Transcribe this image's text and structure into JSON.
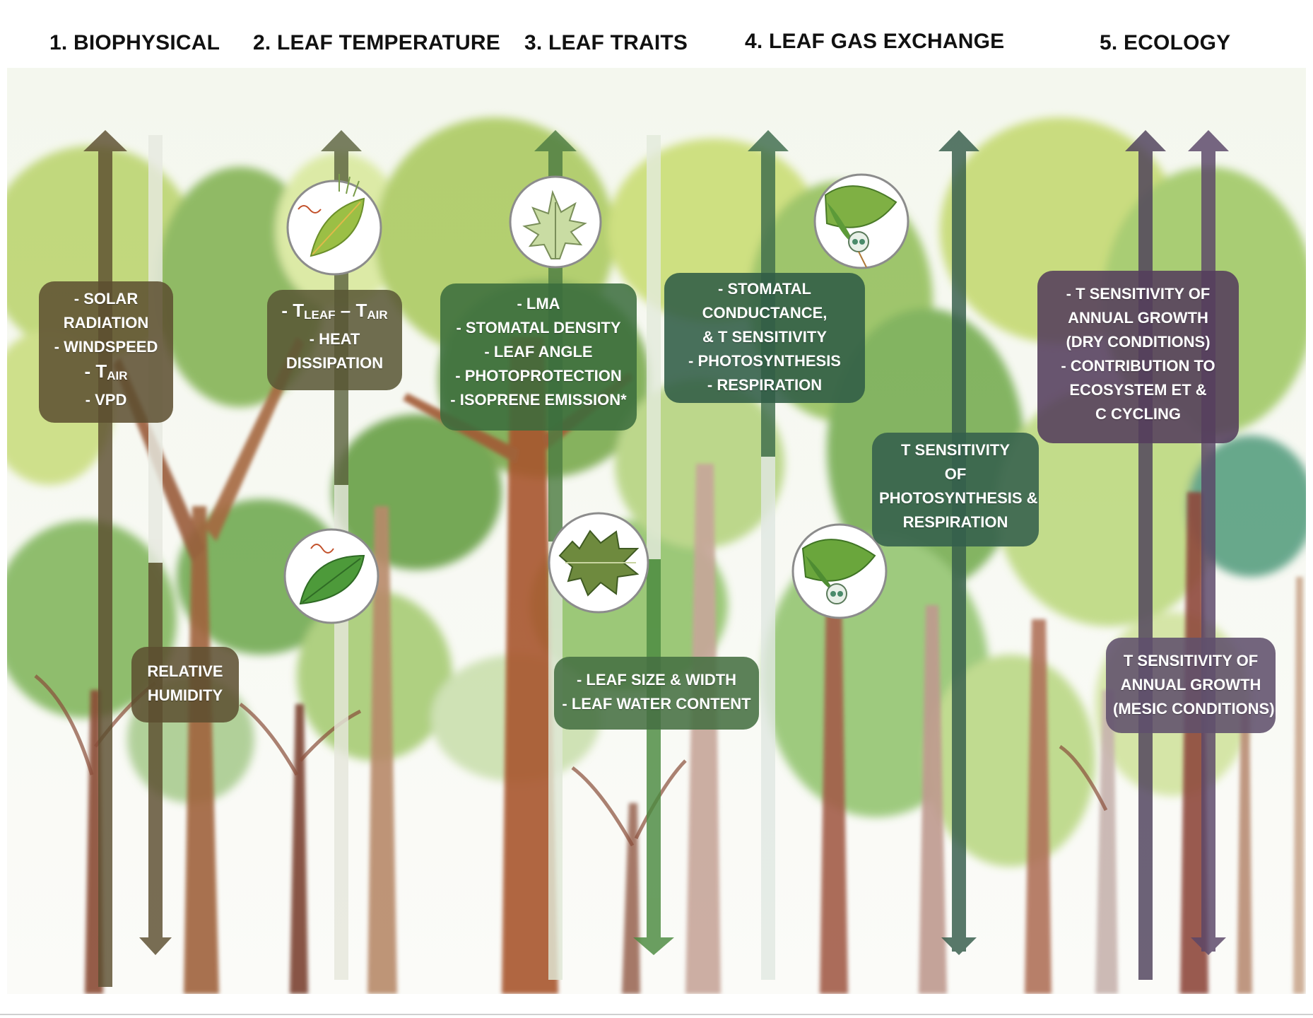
{
  "headings": [
    "1. BIOPHYSICAL",
    "2. LEAF TEMPERATURE",
    "3. LEAF TRAITS",
    "4. LEAF GAS EXCHANGE",
    "5. ECOLOGY"
  ],
  "boxes": {
    "biophysical": {
      "l1": "- SOLAR",
      "l2": "RADIATION",
      "l3": "- WINDSPEED",
      "tair_prefix": "- T",
      "tair_sub": "AIR",
      "l5": "- VPD"
    },
    "humidity": {
      "l1": "RELATIVE",
      "l2": "HUMIDITY"
    },
    "leaf_temp": {
      "t1_prefix": "- T",
      "t1_sub": "LEAF",
      "t1_mid": " – T",
      "t1_sub2": "AIR",
      "l2": "- HEAT",
      "l3": "DISSIPATION"
    },
    "traits": {
      "l1": "- LMA",
      "l2": "- STOMATAL DENSITY",
      "l3": "- LEAF ANGLE",
      "l4": "- PHOTOPROTECTION",
      "l5": "- ISOPRENE EMISSION*"
    },
    "leaf_size": {
      "l1": "- LEAF SIZE & WIDTH",
      "l2": "- LEAF WATER CONTENT"
    },
    "gas": {
      "l1": "- STOMATAL",
      "l2": "CONDUCTANCE,",
      "l3": "& T SENSITIVITY",
      "l4": "- PHOTOSYNTHESIS",
      "l5": "- RESPIRATION"
    },
    "t_sens": {
      "l1": "T SENSITIVITY",
      "l2": "OF",
      "l3": "PHOTOSYNTHESIS &",
      "l4": "RESPIRATION"
    },
    "eco_dry": {
      "l1": "- T SENSITIVITY OF",
      "l2": "ANNUAL GROWTH",
      "l3": "(DRY CONDITIONS)",
      "l4": "- CONTRIBUTION TO",
      "l5": "ECOSYSTEM ET &",
      "l6": "C CYCLING"
    },
    "eco_mesic": {
      "l1": "T SENSITIVITY OF",
      "l2": "ANNUAL GROWTH",
      "l3": "(MESIC CONDITIONS)"
    }
  },
  "icons": [
    "leaf-heat-icon",
    "leaf-heat-small-icon",
    "oak-leaf-icon",
    "oak-leaf-large-icon",
    "leaf-stomata-icon",
    "leaf-stomata-small-icon"
  ],
  "colors": {
    "brown": "#5c4e30",
    "green": "#3a6c3c",
    "teal": "#305c46",
    "purple": "#543e5c"
  }
}
